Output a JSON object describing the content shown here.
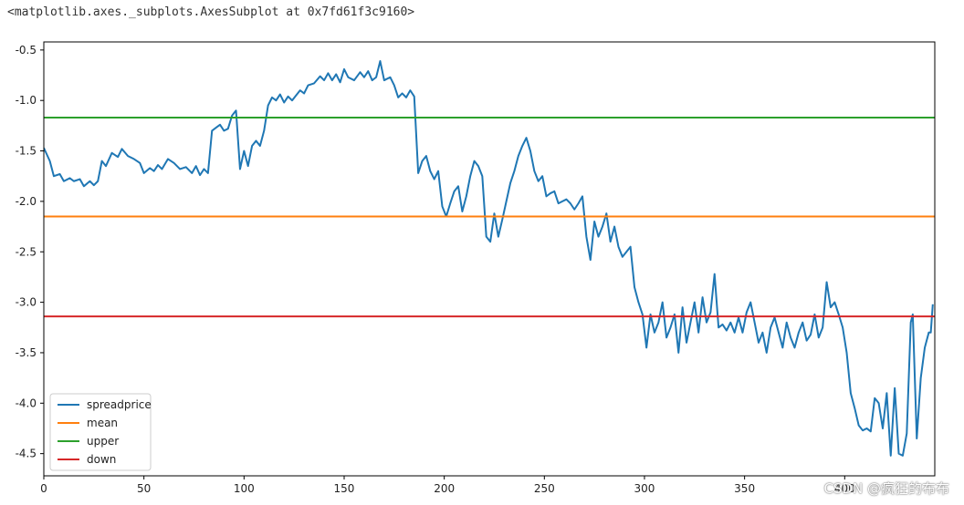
{
  "output_repr": "<matplotlib.axes._subplots.AxesSubplot at 0x7fd61f3c9160>",
  "watermark": "CSDN @疯狂的布布",
  "colors": {
    "spreadprice": "#1f77b4",
    "mean": "#ff7f0e",
    "upper": "#2ca02c",
    "down": "#d62728"
  },
  "chart_data": {
    "type": "line",
    "xlim": [
      0,
      445
    ],
    "ylim": [
      -4.72,
      -0.42
    ],
    "x_ticks": [
      0,
      50,
      100,
      150,
      200,
      250,
      300,
      350,
      400
    ],
    "y_ticks": [
      -0.5,
      -1.0,
      -1.5,
      -2.0,
      -2.5,
      -3.0,
      -3.5,
      -4.0,
      -4.5
    ],
    "x_tick_labels": [
      "0",
      "50",
      "100",
      "150",
      "200",
      "250",
      "300",
      "350",
      "400"
    ],
    "y_tick_labels": [
      "-0.5",
      "-1.0",
      "-1.5",
      "-2.0",
      "-2.5",
      "-3.0",
      "-3.5",
      "-4.0",
      "-4.5"
    ],
    "grid": false,
    "legend_position": "lower left",
    "series": [
      {
        "name": "spreadprice",
        "color": "#1f77b4",
        "points": [
          [
            0,
            -1.47
          ],
          [
            3,
            -1.6
          ],
          [
            5,
            -1.75
          ],
          [
            8,
            -1.73
          ],
          [
            10,
            -1.8
          ],
          [
            13,
            -1.77
          ],
          [
            15,
            -1.8
          ],
          [
            18,
            -1.78
          ],
          [
            20,
            -1.85
          ],
          [
            23,
            -1.8
          ],
          [
            25,
            -1.84
          ],
          [
            27,
            -1.8
          ],
          [
            29,
            -1.6
          ],
          [
            31,
            -1.65
          ],
          [
            34,
            -1.52
          ],
          [
            37,
            -1.56
          ],
          [
            39,
            -1.48
          ],
          [
            42,
            -1.55
          ],
          [
            45,
            -1.58
          ],
          [
            48,
            -1.62
          ],
          [
            50,
            -1.72
          ],
          [
            53,
            -1.67
          ],
          [
            55,
            -1.7
          ],
          [
            57,
            -1.64
          ],
          [
            59,
            -1.68
          ],
          [
            62,
            -1.58
          ],
          [
            65,
            -1.62
          ],
          [
            68,
            -1.68
          ],
          [
            71,
            -1.66
          ],
          [
            74,
            -1.72
          ],
          [
            76,
            -1.65
          ],
          [
            78,
            -1.74
          ],
          [
            80,
            -1.68
          ],
          [
            82,
            -1.72
          ],
          [
            84,
            -1.3
          ],
          [
            86,
            -1.27
          ],
          [
            88,
            -1.24
          ],
          [
            90,
            -1.3
          ],
          [
            92,
            -1.28
          ],
          [
            94,
            -1.15
          ],
          [
            96,
            -1.1
          ],
          [
            98,
            -1.68
          ],
          [
            100,
            -1.5
          ],
          [
            102,
            -1.65
          ],
          [
            104,
            -1.45
          ],
          [
            106,
            -1.4
          ],
          [
            108,
            -1.45
          ],
          [
            110,
            -1.3
          ],
          [
            112,
            -1.05
          ],
          [
            114,
            -0.97
          ],
          [
            116,
            -1.0
          ],
          [
            118,
            -0.94
          ],
          [
            120,
            -1.02
          ],
          [
            122,
            -0.96
          ],
          [
            124,
            -1.0
          ],
          [
            126,
            -0.95
          ],
          [
            128,
            -0.9
          ],
          [
            130,
            -0.93
          ],
          [
            132,
            -0.85
          ],
          [
            135,
            -0.83
          ],
          [
            138,
            -0.76
          ],
          [
            140,
            -0.8
          ],
          [
            142,
            -0.73
          ],
          [
            144,
            -0.8
          ],
          [
            146,
            -0.74
          ],
          [
            148,
            -0.82
          ],
          [
            150,
            -0.69
          ],
          [
            152,
            -0.77
          ],
          [
            155,
            -0.8
          ],
          [
            158,
            -0.72
          ],
          [
            160,
            -0.77
          ],
          [
            162,
            -0.71
          ],
          [
            164,
            -0.8
          ],
          [
            166,
            -0.77
          ],
          [
            168,
            -0.61
          ],
          [
            170,
            -0.8
          ],
          [
            173,
            -0.77
          ],
          [
            175,
            -0.85
          ],
          [
            177,
            -0.97
          ],
          [
            179,
            -0.93
          ],
          [
            181,
            -0.97
          ],
          [
            183,
            -0.9
          ],
          [
            185,
            -0.96
          ],
          [
            187,
            -1.72
          ],
          [
            189,
            -1.6
          ],
          [
            191,
            -1.55
          ],
          [
            193,
            -1.7
          ],
          [
            195,
            -1.78
          ],
          [
            197,
            -1.7
          ],
          [
            199,
            -2.05
          ],
          [
            201,
            -2.15
          ],
          [
            203,
            -2.02
          ],
          [
            205,
            -1.9
          ],
          [
            207,
            -1.85
          ],
          [
            209,
            -2.1
          ],
          [
            211,
            -1.95
          ],
          [
            213,
            -1.75
          ],
          [
            215,
            -1.6
          ],
          [
            217,
            -1.65
          ],
          [
            219,
            -1.75
          ],
          [
            221,
            -2.35
          ],
          [
            223,
            -2.4
          ],
          [
            225,
            -2.12
          ],
          [
            227,
            -2.35
          ],
          [
            229,
            -2.18
          ],
          [
            231,
            -2.0
          ],
          [
            233,
            -1.82
          ],
          [
            235,
            -1.7
          ],
          [
            237,
            -1.55
          ],
          [
            239,
            -1.45
          ],
          [
            241,
            -1.37
          ],
          [
            243,
            -1.5
          ],
          [
            245,
            -1.7
          ],
          [
            247,
            -1.8
          ],
          [
            249,
            -1.75
          ],
          [
            251,
            -1.95
          ],
          [
            253,
            -1.92
          ],
          [
            255,
            -1.9
          ],
          [
            257,
            -2.02
          ],
          [
            259,
            -2.0
          ],
          [
            261,
            -1.98
          ],
          [
            263,
            -2.02
          ],
          [
            265,
            -2.08
          ],
          [
            267,
            -2.02
          ],
          [
            269,
            -1.95
          ],
          [
            271,
            -2.35
          ],
          [
            273,
            -2.58
          ],
          [
            275,
            -2.2
          ],
          [
            277,
            -2.35
          ],
          [
            279,
            -2.25
          ],
          [
            281,
            -2.12
          ],
          [
            283,
            -2.4
          ],
          [
            285,
            -2.25
          ],
          [
            287,
            -2.45
          ],
          [
            289,
            -2.55
          ],
          [
            291,
            -2.5
          ],
          [
            293,
            -2.45
          ],
          [
            295,
            -2.85
          ],
          [
            297,
            -3.0
          ],
          [
            299,
            -3.12
          ],
          [
            301,
            -3.45
          ],
          [
            303,
            -3.12
          ],
          [
            305,
            -3.3
          ],
          [
            307,
            -3.2
          ],
          [
            309,
            -3.0
          ],
          [
            311,
            -3.35
          ],
          [
            313,
            -3.25
          ],
          [
            315,
            -3.12
          ],
          [
            317,
            -3.5
          ],
          [
            319,
            -3.05
          ],
          [
            321,
            -3.4
          ],
          [
            323,
            -3.2
          ],
          [
            325,
            -3.0
          ],
          [
            327,
            -3.3
          ],
          [
            329,
            -2.95
          ],
          [
            331,
            -3.2
          ],
          [
            333,
            -3.1
          ],
          [
            335,
            -2.72
          ],
          [
            337,
            -3.25
          ],
          [
            339,
            -3.22
          ],
          [
            341,
            -3.28
          ],
          [
            343,
            -3.2
          ],
          [
            345,
            -3.3
          ],
          [
            347,
            -3.15
          ],
          [
            349,
            -3.3
          ],
          [
            351,
            -3.1
          ],
          [
            353,
            -3.0
          ],
          [
            355,
            -3.2
          ],
          [
            357,
            -3.4
          ],
          [
            359,
            -3.3
          ],
          [
            361,
            -3.5
          ],
          [
            363,
            -3.25
          ],
          [
            365,
            -3.15
          ],
          [
            367,
            -3.3
          ],
          [
            369,
            -3.45
          ],
          [
            371,
            -3.2
          ],
          [
            373,
            -3.35
          ],
          [
            375,
            -3.45
          ],
          [
            377,
            -3.3
          ],
          [
            379,
            -3.2
          ],
          [
            381,
            -3.38
          ],
          [
            383,
            -3.32
          ],
          [
            385,
            -3.12
          ],
          [
            387,
            -3.35
          ],
          [
            389,
            -3.25
          ],
          [
            391,
            -2.8
          ],
          [
            393,
            -3.05
          ],
          [
            395,
            -3.0
          ],
          [
            397,
            -3.12
          ],
          [
            399,
            -3.25
          ],
          [
            401,
            -3.5
          ],
          [
            403,
            -3.9
          ],
          [
            405,
            -4.05
          ],
          [
            407,
            -4.22
          ],
          [
            409,
            -4.27
          ],
          [
            411,
            -4.25
          ],
          [
            413,
            -4.28
          ],
          [
            415,
            -3.95
          ],
          [
            417,
            -4.0
          ],
          [
            419,
            -4.25
          ],
          [
            421,
            -3.9
          ],
          [
            423,
            -4.52
          ],
          [
            425,
            -3.85
          ],
          [
            427,
            -4.5
          ],
          [
            429,
            -4.52
          ],
          [
            431,
            -4.3
          ],
          [
            433,
            -3.2
          ],
          [
            434,
            -3.12
          ],
          [
            436,
            -4.35
          ],
          [
            438,
            -3.75
          ],
          [
            440,
            -3.45
          ],
          [
            442,
            -3.3
          ],
          [
            443,
            -3.3
          ],
          [
            444,
            -3.02
          ]
        ]
      },
      {
        "name": "mean",
        "color": "#ff7f0e",
        "points": [
          [
            0,
            -2.15
          ],
          [
            445,
            -2.15
          ]
        ]
      },
      {
        "name": "upper",
        "color": "#2ca02c",
        "points": [
          [
            0,
            -1.17
          ],
          [
            445,
            -1.17
          ]
        ]
      },
      {
        "name": "down",
        "color": "#d62728",
        "points": [
          [
            0,
            -3.14
          ],
          [
            445,
            -3.14
          ]
        ]
      }
    ]
  }
}
